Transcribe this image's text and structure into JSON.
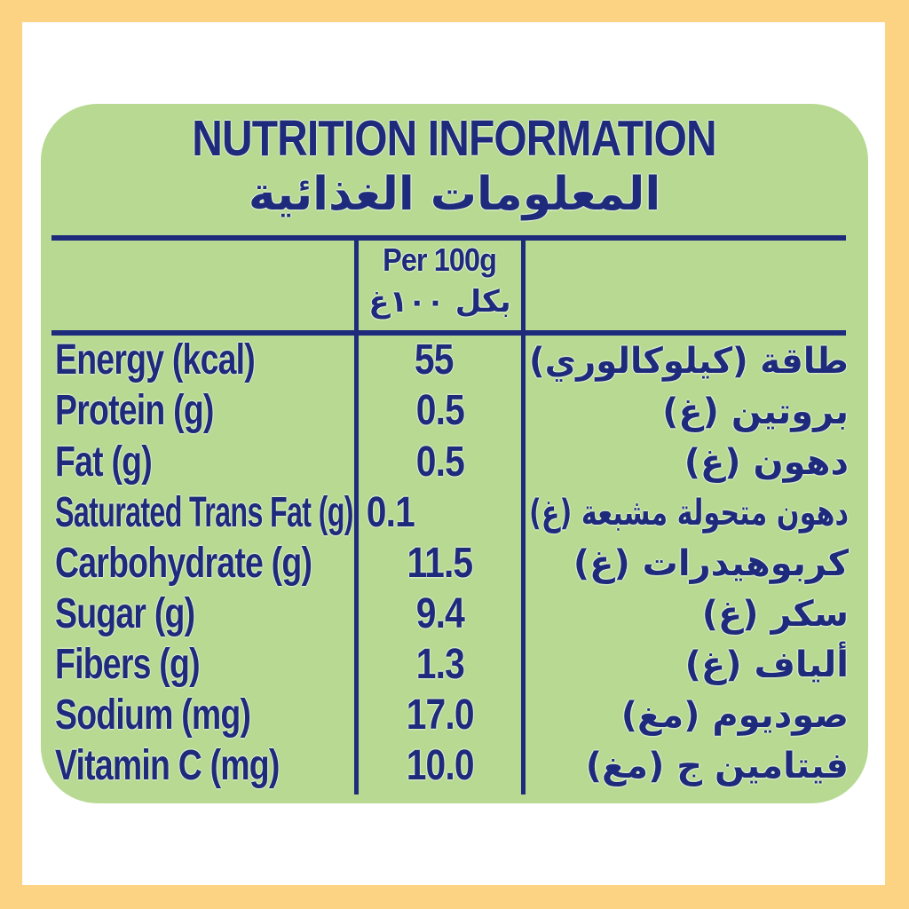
{
  "colors": {
    "frame_border": "#FBD382",
    "panel_background": "#B7D992",
    "text_ink": "#1E2B7C",
    "mat_background": "#FFFFFF"
  },
  "title": {
    "en": "NUTRITION INFORMATION",
    "ar": "المعلومات الغذائية"
  },
  "table": {
    "header": {
      "en": "Per 100g",
      "ar": "بكل ١٠٠غ"
    },
    "rows": [
      {
        "label_en": "Energy (kcal)",
        "value": "55",
        "label_ar": "طاقة (كيلوكالوري)"
      },
      {
        "label_en": "Protein (g)",
        "value": "0.5",
        "label_ar": "بروتين (غ)"
      },
      {
        "label_en": "Fat (g)",
        "value": "0.5",
        "label_ar": "دهون (غ)"
      },
      {
        "label_en": "Saturated Trans Fat (g)",
        "value": "0.1",
        "label_ar": "دهون متحولة مشبعة (غ)"
      },
      {
        "label_en": "Carbohydrate (g)",
        "value": "11.5",
        "label_ar": "كربوهيدرات (غ)"
      },
      {
        "label_en": "Sugar (g)",
        "value": "9.4",
        "label_ar": "سكر (غ)"
      },
      {
        "label_en": "Fibers (g)",
        "value": "1.3",
        "label_ar": "ألياف (غ)"
      },
      {
        "label_en": "Sodium (mg)",
        "value": "17.0",
        "label_ar": "صوديوم (مغ)"
      },
      {
        "label_en": "Vitamin C (mg)",
        "value": "10.0",
        "label_ar": "فيتامين ج (مغ)"
      }
    ]
  }
}
